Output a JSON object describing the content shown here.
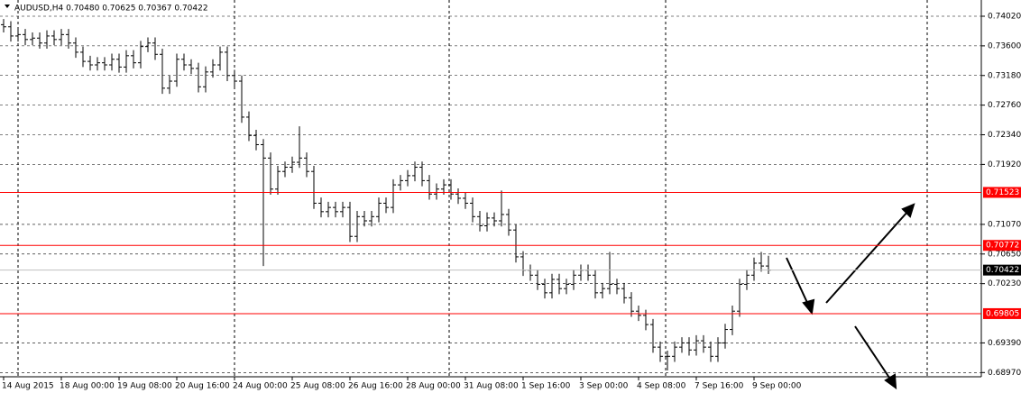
{
  "chart_data": {
    "type": "ohlc",
    "title": "AUDUSD,H4 0.70480 0.70625 0.70367 0.70422",
    "color": "#000000",
    "categories": [
      "14 Aug 2015",
      null,
      null,
      null,
      null,
      null,
      null,
      null,
      "18 Aug 00:00",
      null,
      null,
      null,
      null,
      null,
      null,
      null,
      "19 Aug 08:00",
      null,
      null,
      null,
      null,
      null,
      null,
      null,
      "20 Aug 16:00",
      null,
      null,
      null,
      null,
      null,
      null,
      null,
      "24 Aug 00:00",
      null,
      null,
      null,
      null,
      null,
      null,
      null,
      "25 Aug 08:00",
      null,
      null,
      null,
      null,
      null,
      null,
      null,
      "26 Aug 16:00",
      null,
      null,
      null,
      null,
      null,
      null,
      null,
      "28 Aug 00:00",
      null,
      null,
      null,
      null,
      null,
      null,
      null,
      "31 Aug 08:00",
      null,
      null,
      null,
      null,
      null,
      null,
      null,
      "1 Sep 16:00",
      null,
      null,
      null,
      null,
      null,
      null,
      null,
      "3 Sep 00:00",
      null,
      null,
      null,
      null,
      null,
      null,
      null,
      "4 Sep 08:00",
      null,
      null,
      null,
      null,
      null,
      null,
      null,
      "7 Sep 16:00",
      null,
      null,
      null,
      null,
      null,
      null,
      null,
      "9 Sep 00:00",
      null,
      null
    ],
    "open": [
      0.739,
      0.7387,
      0.7374,
      0.7376,
      0.7369,
      0.7371,
      0.7364,
      0.7374,
      0.7369,
      0.7376,
      0.7364,
      0.7351,
      0.7338,
      0.7333,
      0.7336,
      0.7333,
      0.7341,
      0.733,
      0.7346,
      0.7336,
      0.7359,
      0.7364,
      0.7348,
      0.73,
      0.731,
      0.7341,
      0.7333,
      0.7328,
      0.7302,
      0.7323,
      0.7333,
      0.7351,
      0.7318,
      0.731,
      0.7259,
      0.7233,
      0.722,
      0.7201,
      0.7157,
      0.7182,
      0.7188,
      0.7195,
      0.7201,
      0.7182,
      0.7137,
      0.7125,
      0.7131,
      0.7125,
      0.7131,
      0.709,
      0.7118,
      0.7112,
      0.7118,
      0.7137,
      0.7131,
      0.7163,
      0.7169,
      0.7176,
      0.7188,
      0.7169,
      0.715,
      0.7157,
      0.7163,
      0.715,
      0.7144,
      0.7137,
      0.7118,
      0.7105,
      0.7116,
      0.7112,
      0.7121,
      0.7099,
      0.7061,
      0.7042,
      0.7035,
      0.7022,
      0.701,
      0.7029,
      0.7016,
      0.7022,
      0.7035,
      0.7042,
      0.7035,
      0.701,
      0.7016,
      0.7022,
      0.7016,
      0.7003,
      0.6984,
      0.6978,
      0.6965,
      0.6933,
      0.692,
      0.692,
      0.6933,
      0.6939,
      0.6929,
      0.6942,
      0.6933,
      0.692,
      0.6939,
      0.6958,
      0.6984,
      0.7022,
      0.7035,
      0.7052,
      0.7048
    ],
    "high": [
      0.7398,
      0.7395,
      0.7384,
      0.7384,
      0.7379,
      0.7379,
      0.7382,
      0.7382,
      0.7384,
      0.7384,
      0.7372,
      0.7359,
      0.7346,
      0.7344,
      0.7344,
      0.7349,
      0.7349,
      0.7354,
      0.7354,
      0.7367,
      0.7372,
      0.7372,
      0.7356,
      0.7318,
      0.7349,
      0.7349,
      0.7341,
      0.7336,
      0.7331,
      0.7341,
      0.7359,
      0.7359,
      0.7326,
      0.7318,
      0.7267,
      0.7241,
      0.7228,
      0.7209,
      0.719,
      0.7196,
      0.7203,
      0.7246,
      0.7209,
      0.719,
      0.7145,
      0.7139,
      0.7139,
      0.7139,
      0.7139,
      0.7126,
      0.7126,
      0.7126,
      0.7145,
      0.7145,
      0.7171,
      0.7177,
      0.7184,
      0.7196,
      0.7196,
      0.7177,
      0.7165,
      0.7171,
      0.7171,
      0.7158,
      0.7152,
      0.7145,
      0.7126,
      0.7124,
      0.7124,
      0.7155,
      0.7129,
      0.7107,
      0.7069,
      0.705,
      0.7043,
      0.703,
      0.7037,
      0.7037,
      0.703,
      0.7043,
      0.705,
      0.705,
      0.7043,
      0.7024,
      0.7068,
      0.703,
      0.7024,
      0.7011,
      0.6992,
      0.6986,
      0.6973,
      0.6941,
      0.6928,
      0.6941,
      0.6947,
      0.6947,
      0.695,
      0.695,
      0.6941,
      0.6947,
      0.6966,
      0.6992,
      0.703,
      0.7043,
      0.706,
      0.7068,
      0.70625
    ],
    "low": [
      0.7379,
      0.7366,
      0.7366,
      0.7361,
      0.7361,
      0.7356,
      0.7356,
      0.7361,
      0.7361,
      0.7356,
      0.7343,
      0.733,
      0.7325,
      0.7325,
      0.7325,
      0.7325,
      0.7322,
      0.7322,
      0.7328,
      0.7328,
      0.7351,
      0.734,
      0.7292,
      0.7292,
      0.7302,
      0.7325,
      0.732,
      0.7294,
      0.7294,
      0.7315,
      0.7325,
      0.731,
      0.7302,
      0.7251,
      0.7225,
      0.7212,
      0.7048,
      0.7149,
      0.7149,
      0.7174,
      0.718,
      0.7187,
      0.7174,
      0.7129,
      0.7117,
      0.7117,
      0.7117,
      0.7117,
      0.7082,
      0.7082,
      0.7104,
      0.7104,
      0.711,
      0.7123,
      0.7123,
      0.7155,
      0.7161,
      0.7168,
      0.7161,
      0.7142,
      0.7142,
      0.7149,
      0.7142,
      0.7136,
      0.7129,
      0.711,
      0.7097,
      0.7097,
      0.7104,
      0.7104,
      0.7091,
      0.7053,
      0.7034,
      0.7027,
      0.7014,
      0.7002,
      0.7002,
      0.7008,
      0.7008,
      0.7014,
      0.7027,
      0.7027,
      0.7002,
      0.7002,
      0.7008,
      0.7008,
      0.6995,
      0.6976,
      0.697,
      0.6957,
      0.6925,
      0.6912,
      0.69,
      0.6912,
      0.6925,
      0.6921,
      0.6921,
      0.6925,
      0.6912,
      0.6912,
      0.6931,
      0.695,
      0.6976,
      0.7014,
      0.7027,
      0.704,
      0.70367
    ],
    "close": [
      0.7387,
      0.7374,
      0.7376,
      0.7369,
      0.7371,
      0.7364,
      0.7374,
      0.7369,
      0.7376,
      0.7364,
      0.7351,
      0.7338,
      0.7333,
      0.7336,
      0.7333,
      0.7341,
      0.733,
      0.7346,
      0.7336,
      0.7359,
      0.7364,
      0.7348,
      0.73,
      0.731,
      0.7341,
      0.7333,
      0.7328,
      0.7302,
      0.7323,
      0.7333,
      0.7351,
      0.7318,
      0.731,
      0.7259,
      0.7233,
      0.722,
      0.7201,
      0.7157,
      0.7182,
      0.7188,
      0.7195,
      0.7201,
      0.7182,
      0.7137,
      0.7125,
      0.7131,
      0.7125,
      0.7131,
      0.709,
      0.7118,
      0.7112,
      0.7118,
      0.7137,
      0.7131,
      0.7163,
      0.7169,
      0.7176,
      0.7188,
      0.7169,
      0.715,
      0.7157,
      0.7163,
      0.715,
      0.7144,
      0.7137,
      0.7118,
      0.7105,
      0.7116,
      0.7112,
      0.7121,
      0.7099,
      0.7061,
      0.7042,
      0.7035,
      0.7022,
      0.701,
      0.7029,
      0.7016,
      0.7022,
      0.7035,
      0.7042,
      0.7035,
      0.701,
      0.7016,
      0.7022,
      0.7016,
      0.7003,
      0.6984,
      0.6978,
      0.6965,
      0.6933,
      0.692,
      0.692,
      0.6933,
      0.6939,
      0.6929,
      0.6942,
      0.6933,
      0.692,
      0.6939,
      0.6958,
      0.6984,
      0.7022,
      0.7035,
      0.7052,
      0.7048,
      0.70422
    ],
    "ylim": [
      0.6891,
      0.7425
    ],
    "yticks": [
      {
        "value": 0.7402,
        "label": "0.74020"
      },
      {
        "value": 0.736,
        "label": "0.73600"
      },
      {
        "value": 0.7318,
        "label": "0.73180"
      },
      {
        "value": 0.7276,
        "label": "0.72760"
      },
      {
        "value": 0.7234,
        "label": "0.72340"
      },
      {
        "value": 0.7192,
        "label": "0.71920"
      },
      {
        "value": 0.7107,
        "label": "0.71070"
      },
      {
        "value": 0.7065,
        "label": "0.70650"
      },
      {
        "value": 0.7023,
        "label": "0.70230"
      },
      {
        "value": 0.6939,
        "label": "0.69390"
      },
      {
        "value": 0.6897,
        "label": "0.68970"
      }
    ],
    "grid": true,
    "levels": [
      {
        "value": 0.71523,
        "label": "0.71523"
      },
      {
        "value": 0.70772,
        "label": "0.70772"
      },
      {
        "value": 0.69805,
        "label": "0.69805"
      }
    ],
    "level_color": "#ff0000",
    "last_price": {
      "value": 0.70422,
      "label": "0.70422"
    }
  }
}
